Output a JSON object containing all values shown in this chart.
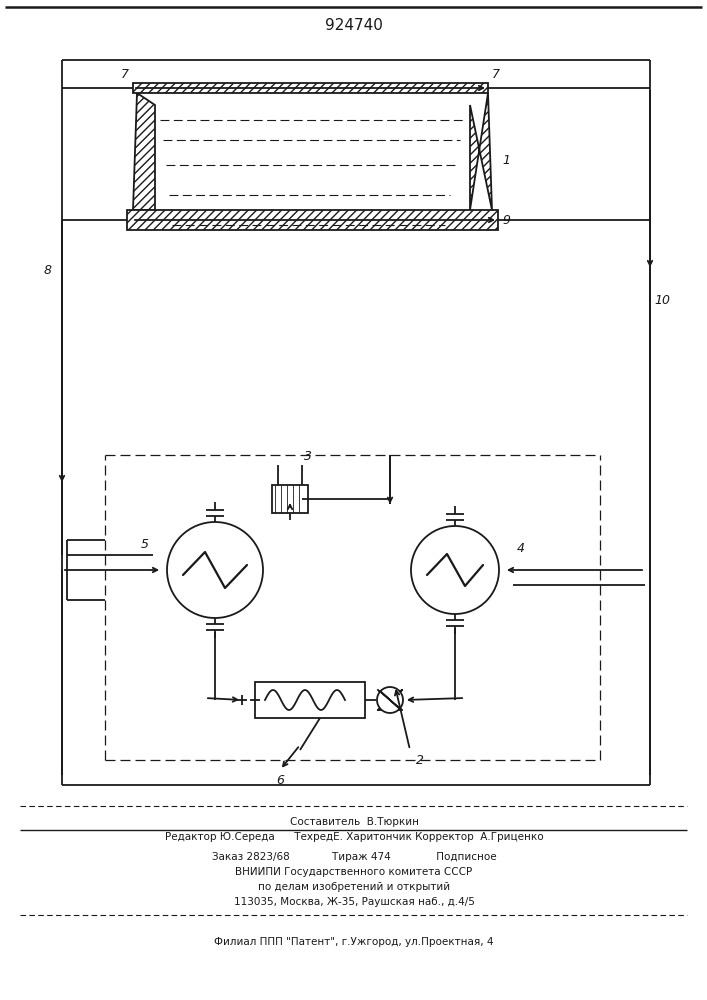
{
  "title": "924740",
  "bg_color": "#ffffff",
  "line_color": "#1a1a1a",
  "lw": 1.3,
  "footer_texts": [
    [
      354,
      178,
      "Составитель  В.Тюркин",
      "center",
      7.5
    ],
    [
      354,
      163,
      "Редактор Ю.Середа      ТехредЕ. Харитончик Корректор  А.Гриценко",
      "center",
      7.5
    ],
    [
      354,
      143,
      "Заказ 2823/68             Тираж 474              Подписное",
      "center",
      7.5
    ],
    [
      354,
      128,
      "ВНИИПИ Государственного комитета СССР",
      "center",
      7.5
    ],
    [
      354,
      113,
      "по делам изобретений и открытий",
      "center",
      7.5
    ],
    [
      354,
      98,
      "113035, Москва, Ж-35, Раушская наб., д.4/5",
      "center",
      7.5
    ],
    [
      354,
      58,
      "Филиал ППП \"Патент\", г.Ужгород, ул.Проектная, 4",
      "center",
      7.5
    ]
  ]
}
